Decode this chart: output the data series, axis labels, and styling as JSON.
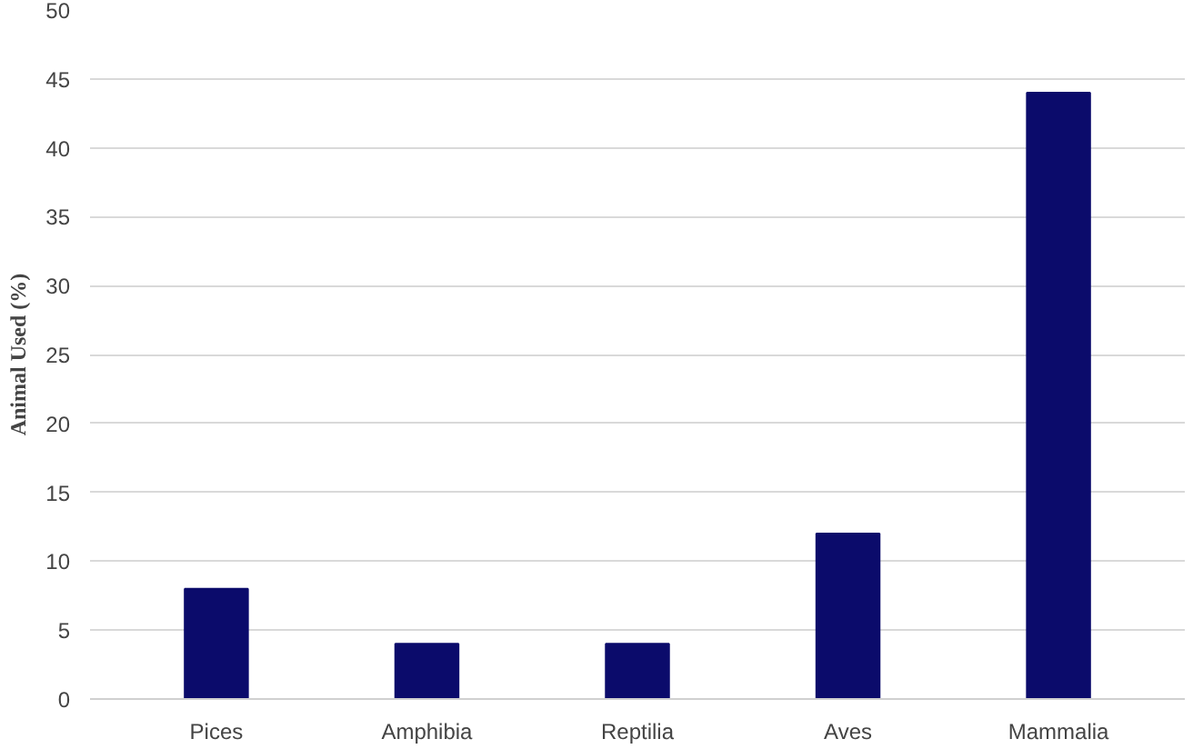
{
  "chart_data": {
    "type": "bar",
    "ylabel": "Animal Used (%)",
    "categories": [
      "Pices",
      "Amphibia",
      "Reptilia",
      "Aves",
      "Mammalia"
    ],
    "values": [
      8,
      4,
      4,
      12,
      44
    ],
    "color": "#0b0b6b",
    "ylim": [
      0,
      50
    ],
    "yticks": [
      0,
      5,
      10,
      15,
      20,
      25,
      30,
      35,
      40,
      45,
      50
    ],
    "grid": "y"
  }
}
